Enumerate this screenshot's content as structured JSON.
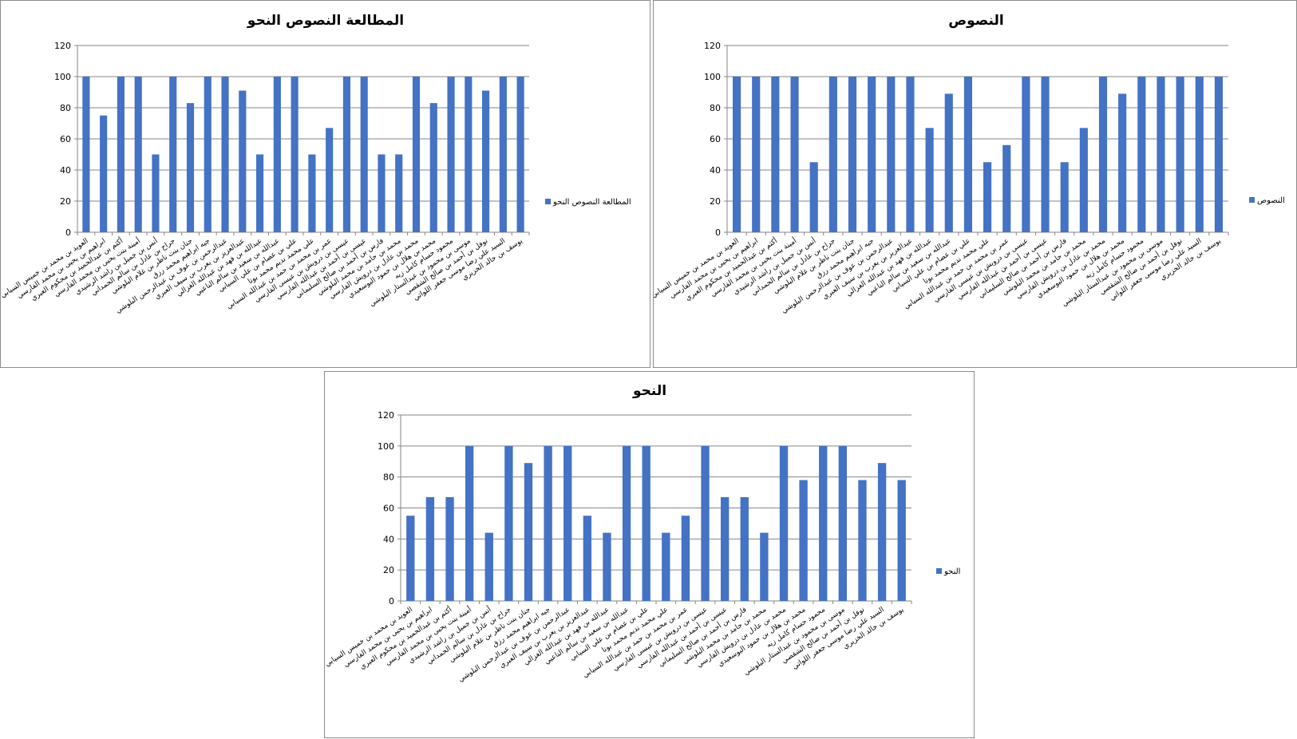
{
  "colors": {
    "bar": "#4472C4",
    "grid": "#868686",
    "axis": "#868686",
    "border": "#8c8c8c"
  },
  "categories": [
    "العويد بن محمد بن خميس السيابي",
    "ابراهيم بن يحيى بن محمد الفارسي",
    "أكثم بن عبدالحميد بن محكوم العبري",
    "أمينة بنت يحيى بن محمد الفارسي",
    "أنس بن جميل بن راشد الرشيدي",
    "جراح بن عادل بن سالم الحمداني",
    "جنان بنت ناظر بن غلام البلوشي",
    "جيه ابراهيم محمد رزق",
    "عبدالرحمن بن عوف بن عبدالرحمن البلوشي",
    "عبدالعزيز بن يعرب بن سيف العبري",
    "عبدالله بن فهد بن عبدالله الغزالي",
    "عبدالله بن سعيد بن سالم الناعبي",
    "علي بن عصام بن علي السيابي",
    "علي محمد نديم محمد بوتا",
    "عمر بن محمد بن حمد بن عبدالله السيابي",
    "عيسى بن درويش بن عيسى الفارسي",
    "عيسى بن أحمد بن عبدالله الفارسي",
    "فارس بن أحمد بن صالح السليماني",
    "محمد بن حامد بن محمد البلوشي",
    "محمد بن عادل بن درويش الفارسي",
    "محمد بن هلال بن حمود البوسعيدي",
    "محمود حسام كامل زيه",
    "موسى بن محمود بن عبدالستار البلوشي",
    "نوفل بن أحمد بن صالح الشقصي",
    "السيد علي رضا موسى جعفر اللواتي",
    "يوسف بن خالد الخزيري"
  ],
  "chart_data": [
    {
      "type": "bar",
      "title": "المطالعة  النصوص النحو",
      "legend": "المطالعة  النصوص النحو",
      "legend_position": "right",
      "ylim": [
        0,
        120
      ],
      "yticks": [
        "0",
        "20",
        "40",
        "60",
        "80",
        "100",
        "120"
      ],
      "grid": true,
      "values": [
        100,
        75,
        100,
        100,
        50,
        100,
        83,
        100,
        100,
        91,
        50,
        100,
        100,
        50,
        67,
        100,
        100,
        50,
        50,
        100,
        83,
        100,
        100,
        91,
        100,
        100
      ]
    },
    {
      "type": "bar",
      "title": "النصوص",
      "legend": "النصوص",
      "legend_position": "right",
      "ylim": [
        0,
        120
      ],
      "yticks": [
        "0",
        "20",
        "40",
        "60",
        "80",
        "100",
        "120"
      ],
      "grid": true,
      "values": [
        100,
        100,
        100,
        100,
        45,
        100,
        100,
        100,
        100,
        100,
        67,
        89,
        100,
        45,
        56,
        100,
        100,
        45,
        67,
        100,
        89,
        100,
        100,
        100,
        100,
        100
      ]
    },
    {
      "type": "bar",
      "title": "النحو",
      "legend": "النحو",
      "legend_position": "right",
      "ylim": [
        0,
        120
      ],
      "yticks": [
        "0",
        "20",
        "40",
        "60",
        "80",
        "100",
        "120"
      ],
      "grid": true,
      "values": [
        55,
        67,
        67,
        100,
        44,
        100,
        89,
        100,
        100,
        55,
        44,
        100,
        100,
        44,
        55,
        100,
        67,
        67,
        44,
        100,
        78,
        100,
        100,
        78,
        89,
        78
      ]
    }
  ]
}
